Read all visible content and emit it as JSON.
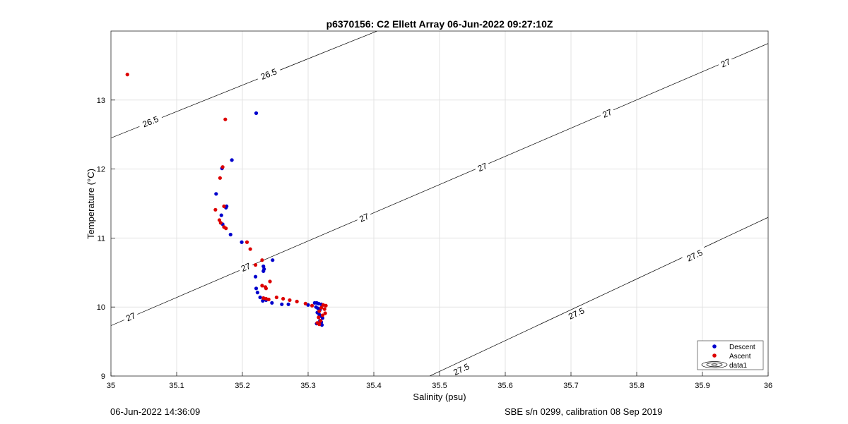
{
  "chart_data": {
    "type": "scatter",
    "title": "p6370156: C2 Ellett Array 06-Jun-2022 09:27:10Z",
    "xlabel": "Salinity (psu)",
    "ylabel": "Temperature (°C)",
    "xlim": [
      35,
      36
    ],
    "ylim": [
      9,
      14
    ],
    "xticks": [
      35,
      35.1,
      35.2,
      35.3,
      35.4,
      35.5,
      35.6,
      35.7,
      35.8,
      35.9,
      36
    ],
    "xtick_labels": [
      "35",
      "35.1",
      "35.2",
      "35.3",
      "35.4",
      "35.5",
      "35.6",
      "35.7",
      "35.8",
      "35.9",
      "36"
    ],
    "yticks": [
      9,
      10,
      11,
      12,
      13
    ],
    "ytick_labels": [
      "9",
      "10",
      "11",
      "12",
      "13"
    ],
    "grid": true,
    "legend_position": "bottom-right",
    "legend": [
      {
        "label": "Descent",
        "type": "marker",
        "color": "#0000cc"
      },
      {
        "label": "Ascent",
        "type": "marker",
        "color": "#dd0000"
      },
      {
        "label": "data1",
        "type": "contour",
        "color": "#000000"
      }
    ],
    "series": [
      {
        "name": "Descent",
        "color": "#0000cc",
        "points": [
          [
            35.221,
            12.81
          ],
          [
            35.184,
            12.13
          ],
          [
            35.169,
            12.01
          ],
          [
            35.176,
            11.46
          ],
          [
            35.175,
            11.44
          ],
          [
            35.16,
            11.64
          ],
          [
            35.168,
            11.33
          ],
          [
            35.17,
            11.2
          ],
          [
            35.182,
            11.05
          ],
          [
            35.199,
            10.94
          ],
          [
            35.246,
            10.68
          ],
          [
            35.232,
            10.59
          ],
          [
            35.233,
            10.55
          ],
          [
            35.232,
            10.52
          ],
          [
            35.22,
            10.44
          ],
          [
            35.221,
            10.27
          ],
          [
            35.223,
            10.21
          ],
          [
            35.227,
            10.14
          ],
          [
            35.231,
            10.09
          ],
          [
            35.236,
            10.1
          ],
          [
            35.245,
            10.06
          ],
          [
            35.26,
            10.04
          ],
          [
            35.27,
            10.04
          ],
          [
            35.3,
            10.03
          ],
          [
            35.31,
            10.06
          ],
          [
            35.313,
            10.06
          ],
          [
            35.316,
            10.05
          ],
          [
            35.32,
            10.04
          ],
          [
            35.312,
            10.0
          ],
          [
            35.315,
            9.98
          ],
          [
            35.318,
            9.96
          ],
          [
            35.314,
            9.92
          ],
          [
            35.317,
            9.89
          ],
          [
            35.319,
            9.87
          ],
          [
            35.322,
            9.84
          ],
          [
            35.318,
            9.8
          ],
          [
            35.32,
            9.78
          ],
          [
            35.313,
            9.76
          ],
          [
            35.321,
            9.74
          ]
        ]
      },
      {
        "name": "Ascent",
        "color": "#dd0000",
        "points": [
          [
            35.025,
            13.37
          ],
          [
            35.174,
            12.72
          ],
          [
            35.17,
            12.03
          ],
          [
            35.166,
            11.87
          ],
          [
            35.172,
            11.46
          ],
          [
            35.159,
            11.41
          ],
          [
            35.165,
            11.26
          ],
          [
            35.167,
            11.22
          ],
          [
            35.172,
            11.16
          ],
          [
            35.175,
            11.14
          ],
          [
            35.207,
            10.94
          ],
          [
            35.212,
            10.84
          ],
          [
            35.23,
            10.68
          ],
          [
            35.22,
            10.61
          ],
          [
            35.242,
            10.37
          ],
          [
            35.23,
            10.31
          ],
          [
            35.235,
            10.29
          ],
          [
            35.236,
            10.27
          ],
          [
            35.232,
            10.13
          ],
          [
            35.24,
            10.11
          ],
          [
            35.236,
            10.12
          ],
          [
            35.252,
            10.14
          ],
          [
            35.262,
            10.12
          ],
          [
            35.272,
            10.1
          ],
          [
            35.283,
            10.08
          ],
          [
            35.296,
            10.05
          ],
          [
            35.306,
            10.02
          ],
          [
            35.323,
            10.03
          ],
          [
            35.327,
            10.02
          ],
          [
            35.32,
            9.99
          ],
          [
            35.325,
            9.97
          ],
          [
            35.317,
            9.94
          ],
          [
            35.326,
            9.91
          ],
          [
            35.322,
            9.88
          ],
          [
            35.316,
            9.85
          ],
          [
            35.319,
            9.8
          ],
          [
            35.314,
            9.77
          ],
          [
            35.317,
            9.75
          ]
        ]
      }
    ],
    "contours": [
      {
        "level": "26.5",
        "points": [
          [
            35,
            12.45
          ],
          [
            35.405,
            14
          ]
        ],
        "label_positions": [
          [
            35.06,
            12.69
          ],
          [
            35.24,
            13.38
          ]
        ]
      },
      {
        "level": "27",
        "points": [
          [
            35,
            9.73
          ],
          [
            36,
            13.82
          ]
        ],
        "label_positions": [
          [
            35.03,
            9.86
          ],
          [
            35.205,
            10.58
          ],
          [
            35.385,
            11.3
          ],
          [
            35.565,
            12.03
          ],
          [
            35.755,
            12.81
          ],
          [
            35.935,
            13.54
          ]
        ]
      },
      {
        "level": "27.5",
        "points": [
          [
            35.485,
            9
          ],
          [
            36,
            11.3
          ]
        ],
        "label_positions": [
          [
            35.533,
            9.1
          ],
          [
            35.708,
            9.91
          ],
          [
            35.888,
            10.75
          ]
        ]
      }
    ]
  },
  "footer": {
    "timestamp": "06-Jun-2022 14:36:09",
    "calibration": "SBE s/n 0299, calibration 08 Sep 2019"
  }
}
